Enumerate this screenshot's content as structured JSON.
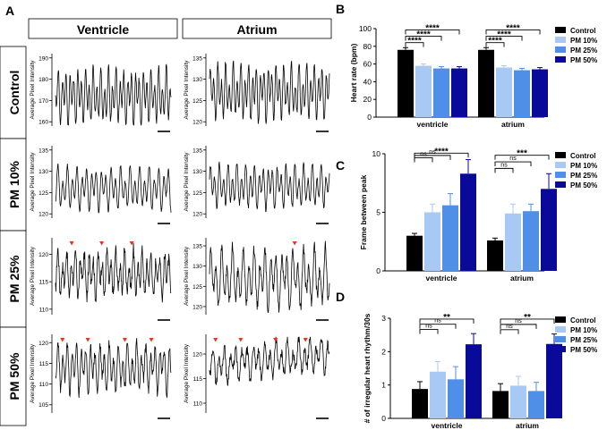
{
  "panel_letters": [
    "A",
    "B",
    "C",
    "D"
  ],
  "panel_a": {
    "columns": [
      "Ventricle",
      "Atrium"
    ],
    "rows": [
      "Control",
      "PM 10%",
      "PM 25%",
      "PM 50%"
    ],
    "ylabel": "Average Pixel Intensity",
    "marker_color": "#e8321e",
    "traces": [
      [
        {
          "yticks": [
            160,
            170,
            180,
            190
          ],
          "ylim": [
            158,
            192
          ],
          "base": 172,
          "amp": 9,
          "freq": 30,
          "noise": 1.5,
          "drift": 0,
          "markers": [],
          "seed": 3
        },
        {
          "yticks": [
            120,
            125,
            130,
            135
          ],
          "ylim": [
            119,
            136
          ],
          "base": 127,
          "amp": 4.5,
          "freq": 31,
          "noise": 0.8,
          "drift": 0,
          "markers": [],
          "seed": 7
        }
      ],
      [
        {
          "yticks": [
            120,
            125,
            130,
            135
          ],
          "ylim": [
            119,
            136
          ],
          "base": 126,
          "amp": 3.5,
          "freq": 24,
          "noise": 0.5,
          "drift": 0,
          "markers": [],
          "seed": 11
        },
        {
          "yticks": [
            120,
            125,
            130,
            135
          ],
          "ylim": [
            119,
            136
          ],
          "base": 126.5,
          "amp": 3.5,
          "freq": 27,
          "noise": 0.6,
          "drift": 0,
          "markers": [],
          "seed": 13
        }
      ],
      [
        {
          "yticks": [
            110,
            115,
            120
          ],
          "ylim": [
            109,
            123
          ],
          "base": 116.5,
          "amp": 2.8,
          "freq": 26,
          "noise": 1.2,
          "drift": 0,
          "markers": [
            0.14,
            0.4,
            0.66
          ],
          "seed": 17
        },
        {
          "yticks": [
            120,
            125,
            130,
            135
          ],
          "ylim": [
            118,
            137
          ],
          "base": 127,
          "amp": 5,
          "freq": 22,
          "noise": 1.4,
          "drift": 0,
          "markers": [
            0.71
          ],
          "seed": 19
        }
      ],
      [
        {
          "yticks": [
            105,
            110,
            115,
            120
          ],
          "ylim": [
            103,
            122
          ],
          "base": 114,
          "amp": 4,
          "freq": 25,
          "noise": 1.3,
          "drift": 0,
          "markers": [
            0.06,
            0.28,
            0.6,
            0.83
          ],
          "seed": 23
        },
        {
          "yticks": [
            110,
            115,
            120
          ],
          "ylim": [
            108,
            124
          ],
          "base": 117.5,
          "amp": 2.5,
          "freq": 21,
          "noise": 1.0,
          "drift": 2.5,
          "markers": [
            0.05,
            0.26,
            0.55,
            0.8
          ],
          "seed": 29
        }
      ]
    ]
  },
  "legend_labels": [
    "Control",
    "PM 10%",
    "PM 25%",
    "PM 50%"
  ],
  "colors": [
    "#000000",
    "#a9c9f5",
    "#4f8fe8",
    "#0a0a9a"
  ],
  "chart_data": [
    {
      "type": "bar",
      "panel": "B",
      "categories": [
        "ventricle",
        "atrium"
      ],
      "ylabel": "Heart rate (bpm)",
      "ylim": [
        0,
        100
      ],
      "yticks": [
        0,
        20,
        40,
        60,
        80,
        100
      ],
      "series": [
        {
          "name": "Control",
          "values": [
            76,
            76
          ],
          "errors": [
            2.5,
            2.5
          ]
        },
        {
          "name": "PM 10%",
          "values": [
            58,
            56
          ],
          "errors": [
            2,
            2
          ]
        },
        {
          "name": "PM 25%",
          "values": [
            55,
            53
          ],
          "errors": [
            2,
            2
          ]
        },
        {
          "name": "PM 50%",
          "values": [
            55,
            54
          ],
          "errors": [
            2,
            2
          ]
        }
      ],
      "significance": [
        {
          "group": 0,
          "to": 1,
          "label": "****"
        },
        {
          "group": 0,
          "to": 2,
          "label": "****"
        },
        {
          "group": 0,
          "to": 3,
          "label": "****"
        },
        {
          "group": 1,
          "to": 1,
          "label": "****"
        },
        {
          "group": 1,
          "to": 2,
          "label": "****"
        },
        {
          "group": 1,
          "to": 3,
          "label": "****"
        }
      ]
    },
    {
      "type": "bar",
      "panel": "C",
      "categories": [
        "ventricle",
        "atrium"
      ],
      "ylabel": "Frame between peak",
      "ylim": [
        0,
        10
      ],
      "yticks": [
        0,
        5,
        10
      ],
      "series": [
        {
          "name": "Control",
          "values": [
            3.0,
            2.6
          ],
          "errors": [
            0.2,
            0.2
          ]
        },
        {
          "name": "PM 10%",
          "values": [
            5.0,
            4.9
          ],
          "errors": [
            0.7,
            0.8
          ]
        },
        {
          "name": "PM 25%",
          "values": [
            5.6,
            5.1
          ],
          "errors": [
            1.0,
            0.6
          ]
        },
        {
          "name": "PM 50%",
          "values": [
            8.3,
            7.0
          ],
          "errors": [
            1.2,
            1.3
          ]
        }
      ],
      "significance": [
        {
          "group": 0,
          "to": 1,
          "label": "ns"
        },
        {
          "group": 0,
          "to": 2,
          "label": "ns"
        },
        {
          "group": 0,
          "to": 3,
          "label": "****"
        },
        {
          "group": 1,
          "to": 1,
          "label": "ns"
        },
        {
          "group": 1,
          "to": 2,
          "label": "ns"
        },
        {
          "group": 1,
          "to": 3,
          "label": "***"
        }
      ]
    },
    {
      "type": "bar",
      "panel": "D",
      "categories": [
        "ventricle",
        "atrium"
      ],
      "ylabel": "# of irregular heart rhythm/30s",
      "ylim": [
        0,
        3
      ],
      "yticks": [
        0,
        1,
        2,
        3
      ],
      "series": [
        {
          "name": "Control",
          "values": [
            0.88,
            0.82
          ],
          "errors": [
            0.22,
            0.22
          ]
        },
        {
          "name": "PM 10%",
          "values": [
            1.4,
            0.98
          ],
          "errors": [
            0.3,
            0.28
          ]
        },
        {
          "name": "PM 25%",
          "values": [
            1.17,
            0.82
          ],
          "errors": [
            0.38,
            0.26
          ]
        },
        {
          "name": "PM 50%",
          "values": [
            2.22,
            2.23
          ],
          "errors": [
            0.32,
            0.3
          ]
        }
      ],
      "significance": [
        {
          "group": 0,
          "to": 1,
          "label": "ns"
        },
        {
          "group": 0,
          "to": 2,
          "label": "ns"
        },
        {
          "group": 0,
          "to": 3,
          "label": "**"
        },
        {
          "group": 1,
          "to": 1,
          "label": "ns"
        },
        {
          "group": 1,
          "to": 2,
          "label": "ns"
        },
        {
          "group": 1,
          "to": 3,
          "label": "**"
        }
      ]
    }
  ]
}
